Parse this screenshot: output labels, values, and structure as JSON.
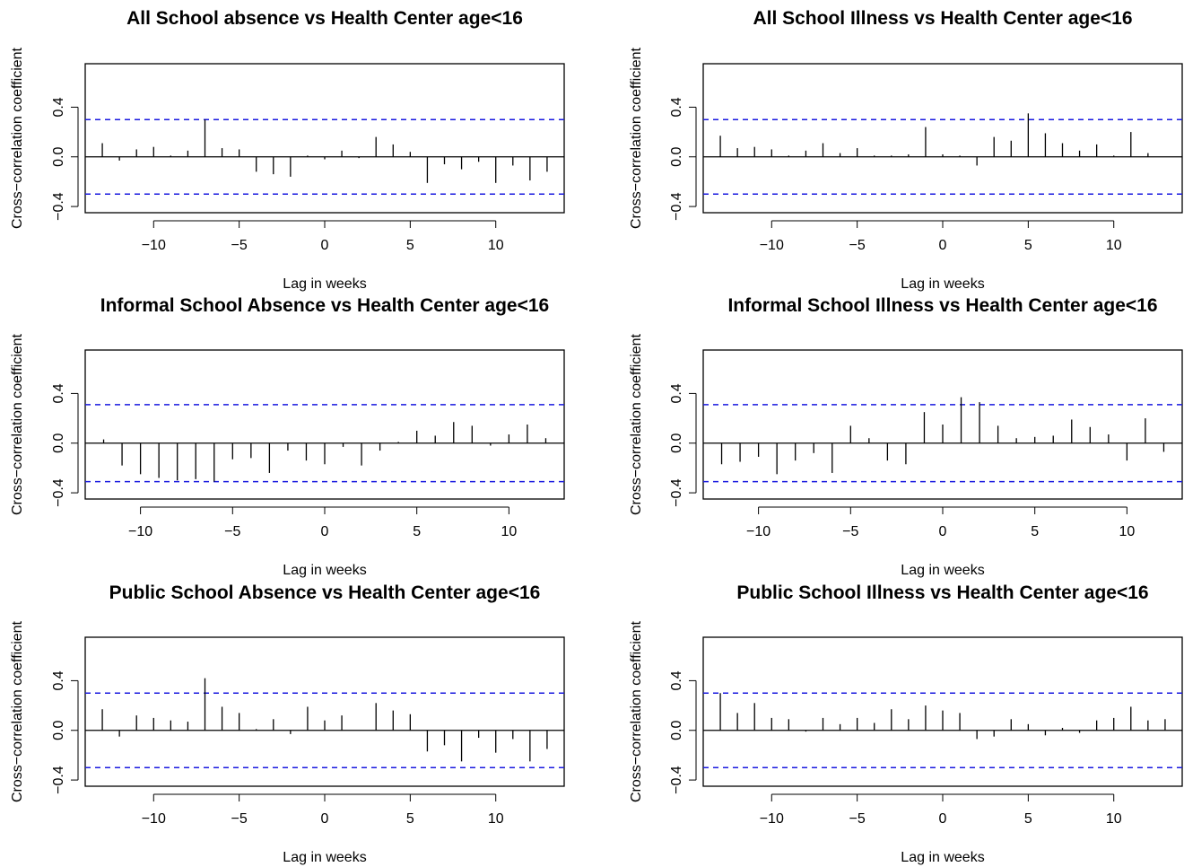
{
  "chart_data": [
    {
      "type": "bar",
      "title": "All School absence vs Health Center age<16",
      "xlabel": "Lag in weeks",
      "ylabel": "Cross−correlation coefficient",
      "xlim": [
        -14,
        14
      ],
      "ylim": [
        -0.45,
        0.75
      ],
      "xticks": [
        -10,
        -5,
        0,
        5,
        10
      ],
      "yticks": [
        -0.4,
        0.0,
        0.4
      ],
      "xtick_labels": [
        "−10",
        "−5",
        "0",
        "5",
        "10"
      ],
      "ytick_labels": [
        "−0.4",
        "0.0",
        "0.4"
      ],
      "confidence_bound": 0.3,
      "confidence_color": "#1a1adf",
      "x": [
        -13,
        -12,
        -11,
        -10,
        -9,
        -8,
        -7,
        -6,
        -5,
        -4,
        -3,
        -2,
        -1,
        0,
        1,
        2,
        3,
        4,
        5,
        6,
        7,
        8,
        9,
        10,
        11,
        12,
        13
      ],
      "values": [
        0.11,
        -0.03,
        0.06,
        0.08,
        0.01,
        0.05,
        0.3,
        0.07,
        0.06,
        -0.12,
        -0.14,
        -0.16,
        0.01,
        -0.02,
        0.05,
        -0.01,
        0.16,
        0.1,
        0.04,
        -0.21,
        -0.06,
        -0.1,
        -0.04,
        -0.21,
        -0.07,
        -0.19,
        -0.12
      ]
    },
    {
      "type": "bar",
      "title": "All School Illness vs Health Center age<16",
      "xlabel": "Lag in weeks",
      "ylabel": "Cross−correlation coefficient",
      "xlim": [
        -14,
        14
      ],
      "ylim": [
        -0.45,
        0.75
      ],
      "xticks": [
        -10,
        -5,
        0,
        5,
        10
      ],
      "yticks": [
        -0.4,
        0.0,
        0.4
      ],
      "xtick_labels": [
        "−10",
        "−5",
        "0",
        "5",
        "10"
      ],
      "ytick_labels": [
        "−0.4",
        "0.0",
        "0.4"
      ],
      "confidence_bound": 0.3,
      "confidence_color": "#1a1adf",
      "x": [
        -13,
        -12,
        -11,
        -10,
        -9,
        -8,
        -7,
        -6,
        -5,
        -4,
        -3,
        -2,
        -1,
        0,
        1,
        2,
        3,
        4,
        5,
        6,
        7,
        8,
        9,
        10,
        11,
        12,
        13
      ],
      "values": [
        0.17,
        0.07,
        0.08,
        0.06,
        0.01,
        0.05,
        0.11,
        0.03,
        0.07,
        0.01,
        0.01,
        0.02,
        0.24,
        0.02,
        0.01,
        -0.07,
        0.16,
        0.13,
        0.35,
        0.19,
        0.11,
        0.05,
        0.1,
        0.01,
        0.2,
        0.03,
        0.0
      ]
    },
    {
      "type": "bar",
      "title": "Informal School Absence vs Health Center age<16",
      "xlabel": "Lag in weeks",
      "ylabel": "Cross−correlation coefficient",
      "xlim": [
        -13,
        13
      ],
      "ylim": [
        -0.45,
        0.75
      ],
      "xticks": [
        -10,
        -5,
        0,
        5,
        10
      ],
      "yticks": [
        -0.4,
        0.0,
        0.4
      ],
      "xtick_labels": [
        "−10",
        "−5",
        "0",
        "5",
        "10"
      ],
      "ytick_labels": [
        "−0.4",
        "0.0",
        "0.4"
      ],
      "confidence_bound": 0.31,
      "confidence_color": "#1a1adf",
      "x": [
        -12,
        -11,
        -10,
        -9,
        -8,
        -7,
        -6,
        -5,
        -4,
        -3,
        -2,
        -1,
        0,
        1,
        2,
        3,
        4,
        5,
        6,
        7,
        8,
        9,
        10,
        11,
        12
      ],
      "values": [
        0.03,
        -0.18,
        -0.25,
        -0.28,
        -0.3,
        -0.29,
        -0.31,
        -0.13,
        -0.12,
        -0.24,
        -0.06,
        -0.14,
        -0.17,
        -0.03,
        -0.18,
        -0.06,
        0.01,
        0.1,
        0.06,
        0.17,
        0.14,
        -0.02,
        0.07,
        0.15,
        0.04
      ]
    },
    {
      "type": "bar",
      "title": "Informal School Illness vs Health Center age<16",
      "xlabel": "Lag in weeks",
      "ylabel": "Cross−correlation coefficient",
      "xlim": [
        -13,
        13
      ],
      "ylim": [
        -0.45,
        0.75
      ],
      "xticks": [
        -10,
        -5,
        0,
        5,
        10
      ],
      "yticks": [
        -0.4,
        0.0,
        0.4
      ],
      "xtick_labels": [
        "−10",
        "−5",
        "0",
        "5",
        "10"
      ],
      "ytick_labels": [
        "−0.4",
        "0.0",
        "0.4"
      ],
      "confidence_bound": 0.31,
      "confidence_color": "#1a1adf",
      "x": [
        -12,
        -11,
        -10,
        -9,
        -8,
        -7,
        -6,
        -5,
        -4,
        -3,
        -2,
        -1,
        0,
        1,
        2,
        3,
        4,
        5,
        6,
        7,
        8,
        9,
        10,
        11,
        12
      ],
      "values": [
        -0.17,
        -0.15,
        -0.11,
        -0.25,
        -0.14,
        -0.08,
        -0.24,
        0.14,
        0.04,
        -0.14,
        -0.17,
        0.25,
        0.15,
        0.37,
        0.33,
        0.14,
        0.04,
        0.05,
        0.06,
        0.19,
        0.13,
        0.07,
        -0.14,
        0.2,
        -0.07
      ]
    },
    {
      "type": "bar",
      "title": "Public School Absence vs Health Center age<16",
      "xlabel": "Lag in weeks",
      "ylabel": "Cross−correlation coefficient",
      "xlim": [
        -14,
        14
      ],
      "ylim": [
        -0.45,
        0.75
      ],
      "xticks": [
        -10,
        -5,
        0,
        5,
        10
      ],
      "yticks": [
        -0.4,
        0.0,
        0.4
      ],
      "xtick_labels": [
        "−10",
        "−5",
        "0",
        "5",
        "10"
      ],
      "ytick_labels": [
        "−0.4",
        "0.0",
        "0.4"
      ],
      "confidence_bound": 0.3,
      "confidence_color": "#1a1adf",
      "x": [
        -13,
        -12,
        -11,
        -10,
        -9,
        -8,
        -7,
        -6,
        -5,
        -4,
        -3,
        -2,
        -1,
        0,
        1,
        2,
        3,
        4,
        5,
        6,
        7,
        8,
        9,
        10,
        11,
        12,
        13
      ],
      "values": [
        0.17,
        -0.05,
        0.12,
        0.1,
        0.08,
        0.07,
        0.42,
        0.19,
        0.14,
        0.01,
        0.09,
        -0.03,
        0.19,
        0.08,
        0.12,
        0.0,
        0.22,
        0.16,
        0.13,
        -0.17,
        -0.12,
        -0.25,
        -0.06,
        -0.18,
        -0.07,
        -0.25,
        -0.15
      ]
    },
    {
      "type": "bar",
      "title": "Public School Illness vs Health Center age<16",
      "xlabel": "Lag in weeks",
      "ylabel": "Cross−correlation coefficient",
      "xlim": [
        -14,
        14
      ],
      "ylim": [
        -0.45,
        0.75
      ],
      "xticks": [
        -10,
        -5,
        0,
        5,
        10
      ],
      "yticks": [
        -0.4,
        0.0,
        0.4
      ],
      "xtick_labels": [
        "−10",
        "−5",
        "0",
        "5",
        "10"
      ],
      "ytick_labels": [
        "−0.4",
        "0.0",
        "0.4"
      ],
      "confidence_bound": 0.3,
      "confidence_color": "#1a1adf",
      "x": [
        -13,
        -12,
        -11,
        -10,
        -9,
        -8,
        -7,
        -6,
        -5,
        -4,
        -3,
        -2,
        -1,
        0,
        1,
        2,
        3,
        4,
        5,
        6,
        7,
        8,
        9,
        10,
        11,
        12,
        13
      ],
      "values": [
        0.3,
        0.14,
        0.22,
        0.1,
        0.09,
        -0.01,
        0.1,
        0.05,
        0.1,
        0.06,
        0.17,
        0.09,
        0.2,
        0.16,
        0.14,
        -0.07,
        -0.05,
        0.09,
        0.05,
        -0.04,
        0.02,
        -0.02,
        0.08,
        0.1,
        0.19,
        0.08,
        0.09
      ]
    }
  ]
}
